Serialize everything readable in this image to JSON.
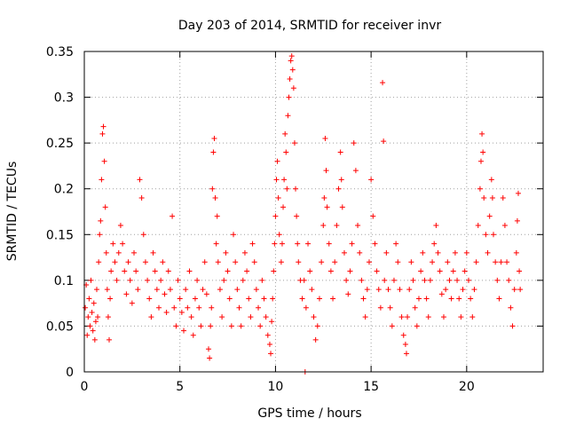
{
  "chart_data": {
    "type": "scatter",
    "title": "Day 203 of 2014, SRMTID for receiver invr",
    "xlabel": "GPS time / hours",
    "ylabel": "SRMTID / TECUs",
    "xlim": [
      0,
      24
    ],
    "ylim": [
      0,
      0.35
    ],
    "x_ticks": [
      0,
      5,
      10,
      15,
      20
    ],
    "y_ticks": [
      0,
      0.05,
      0.1,
      0.15,
      0.2,
      0.25,
      0.3,
      0.35
    ],
    "x_tick_labels": [
      "0",
      "5",
      "10",
      "15",
      "20"
    ],
    "y_tick_labels": [
      "0",
      "0.05",
      "0.1",
      "0.15",
      "0.2",
      "0.25",
      "0.3",
      "0.35"
    ],
    "grid": true,
    "marker": "plus",
    "color": "#ff0000",
    "series": [
      {
        "name": "SRMTID",
        "points": [
          [
            0.05,
            0.07
          ],
          [
            0.1,
            0.095
          ],
          [
            0.15,
            0.04
          ],
          [
            0.2,
            0.06
          ],
          [
            0.25,
            0.08
          ],
          [
            0.3,
            0.05
          ],
          [
            0.35,
            0.1
          ],
          [
            0.4,
            0.065
          ],
          [
            0.45,
            0.045
          ],
          [
            0.5,
            0.075
          ],
          [
            0.55,
            0.035
          ],
          [
            0.6,
            0.055
          ],
          [
            0.65,
            0.09
          ],
          [
            0.7,
            0.06
          ],
          [
            0.75,
            0.12
          ],
          [
            0.8,
            0.15
          ],
          [
            0.85,
            0.165
          ],
          [
            0.9,
            0.21
          ],
          [
            0.95,
            0.26
          ],
          [
            1.0,
            0.268
          ],
          [
            1.05,
            0.23
          ],
          [
            1.1,
            0.18
          ],
          [
            1.15,
            0.13
          ],
          [
            1.2,
            0.09
          ],
          [
            1.25,
            0.06
          ],
          [
            1.3,
            0.035
          ],
          [
            1.35,
            0.08
          ],
          [
            1.4,
            0.11
          ],
          [
            1.5,
            0.14
          ],
          [
            1.6,
            0.12
          ],
          [
            1.7,
            0.1
          ],
          [
            1.8,
            0.13
          ],
          [
            1.9,
            0.16
          ],
          [
            2.0,
            0.14
          ],
          [
            2.1,
            0.11
          ],
          [
            2.2,
            0.085
          ],
          [
            2.3,
            0.12
          ],
          [
            2.4,
            0.1
          ],
          [
            2.5,
            0.075
          ],
          [
            2.6,
            0.13
          ],
          [
            2.7,
            0.11
          ],
          [
            2.8,
            0.09
          ],
          [
            2.9,
            0.21
          ],
          [
            3.0,
            0.19
          ],
          [
            3.1,
            0.15
          ],
          [
            3.2,
            0.12
          ],
          [
            3.3,
            0.1
          ],
          [
            3.4,
            0.08
          ],
          [
            3.5,
            0.06
          ],
          [
            3.6,
            0.13
          ],
          [
            3.7,
            0.11
          ],
          [
            3.8,
            0.09
          ],
          [
            3.9,
            0.07
          ],
          [
            4.0,
            0.1
          ],
          [
            4.1,
            0.12
          ],
          [
            4.2,
            0.085
          ],
          [
            4.3,
            0.065
          ],
          [
            4.4,
            0.11
          ],
          [
            4.5,
            0.09
          ],
          [
            4.6,
            0.17
          ],
          [
            4.7,
            0.07
          ],
          [
            4.8,
            0.05
          ],
          [
            4.9,
            0.1
          ],
          [
            5.0,
            0.08
          ],
          [
            5.1,
            0.065
          ],
          [
            5.2,
            0.045
          ],
          [
            5.3,
            0.09
          ],
          [
            5.4,
            0.07
          ],
          [
            5.5,
            0.11
          ],
          [
            5.6,
            0.06
          ],
          [
            5.7,
            0.04
          ],
          [
            5.8,
            0.08
          ],
          [
            5.9,
            0.1
          ],
          [
            6.0,
            0.07
          ],
          [
            6.1,
            0.05
          ],
          [
            6.2,
            0.09
          ],
          [
            6.3,
            0.12
          ],
          [
            6.4,
            0.085
          ],
          [
            6.5,
            0.025
          ],
          [
            6.55,
            0.015
          ],
          [
            6.6,
            0.05
          ],
          [
            6.65,
            0.07
          ],
          [
            6.7,
            0.2
          ],
          [
            6.75,
            0.24
          ],
          [
            6.8,
            0.255
          ],
          [
            6.85,
            0.19
          ],
          [
            6.9,
            0.14
          ],
          [
            6.95,
            0.17
          ],
          [
            7.0,
            0.12
          ],
          [
            7.1,
            0.09
          ],
          [
            7.2,
            0.06
          ],
          [
            7.3,
            0.1
          ],
          [
            7.4,
            0.13
          ],
          [
            7.5,
            0.11
          ],
          [
            7.6,
            0.08
          ],
          [
            7.7,
            0.05
          ],
          [
            7.8,
            0.15
          ],
          [
            7.9,
            0.12
          ],
          [
            8.0,
            0.09
          ],
          [
            8.1,
            0.07
          ],
          [
            8.2,
            0.05
          ],
          [
            8.3,
            0.1
          ],
          [
            8.4,
            0.13
          ],
          [
            8.5,
            0.11
          ],
          [
            8.6,
            0.08
          ],
          [
            8.7,
            0.06
          ],
          [
            8.8,
            0.14
          ],
          [
            8.9,
            0.12
          ],
          [
            9.0,
            0.09
          ],
          [
            9.1,
            0.07
          ],
          [
            9.2,
            0.05
          ],
          [
            9.3,
            0.1
          ],
          [
            9.4,
            0.08
          ],
          [
            9.5,
            0.06
          ],
          [
            9.6,
            0.04
          ],
          [
            9.7,
            0.03
          ],
          [
            9.75,
            0.02
          ],
          [
            9.8,
            0.055
          ],
          [
            9.85,
            0.08
          ],
          [
            9.9,
            0.11
          ],
          [
            9.95,
            0.14
          ],
          [
            10.0,
            0.17
          ],
          [
            10.05,
            0.21
          ],
          [
            10.1,
            0.23
          ],
          [
            10.15,
            0.19
          ],
          [
            10.2,
            0.15
          ],
          [
            10.3,
            0.12
          ],
          [
            10.35,
            0.14
          ],
          [
            10.4,
            0.18
          ],
          [
            10.45,
            0.21
          ],
          [
            10.5,
            0.26
          ],
          [
            10.55,
            0.24
          ],
          [
            10.6,
            0.2
          ],
          [
            10.65,
            0.28
          ],
          [
            10.7,
            0.3
          ],
          [
            10.75,
            0.32
          ],
          [
            10.8,
            0.34
          ],
          [
            10.85,
            0.345
          ],
          [
            10.9,
            0.33
          ],
          [
            10.95,
            0.31
          ],
          [
            11.0,
            0.25
          ],
          [
            11.05,
            0.2
          ],
          [
            11.1,
            0.17
          ],
          [
            11.15,
            0.14
          ],
          [
            11.2,
            0.12
          ],
          [
            11.3,
            0.1
          ],
          [
            11.4,
            0.08
          ],
          [
            11.5,
            0.1
          ],
          [
            11.55,
            0.0
          ],
          [
            11.6,
            0.07
          ],
          [
            11.7,
            0.14
          ],
          [
            11.8,
            0.11
          ],
          [
            11.9,
            0.09
          ],
          [
            12.0,
            0.06
          ],
          [
            12.1,
            0.035
          ],
          [
            12.2,
            0.05
          ],
          [
            12.3,
            0.08
          ],
          [
            12.4,
            0.12
          ],
          [
            12.5,
            0.16
          ],
          [
            12.55,
            0.19
          ],
          [
            12.6,
            0.255
          ],
          [
            12.65,
            0.22
          ],
          [
            12.7,
            0.18
          ],
          [
            12.8,
            0.14
          ],
          [
            12.9,
            0.11
          ],
          [
            13.0,
            0.08
          ],
          [
            13.1,
            0.12
          ],
          [
            13.2,
            0.16
          ],
          [
            13.3,
            0.2
          ],
          [
            13.4,
            0.24
          ],
          [
            13.45,
            0.21
          ],
          [
            13.5,
            0.18
          ],
          [
            13.6,
            0.13
          ],
          [
            13.7,
            0.1
          ],
          [
            13.8,
            0.085
          ],
          [
            13.9,
            0.11
          ],
          [
            14.0,
            0.14
          ],
          [
            14.1,
            0.25
          ],
          [
            14.2,
            0.22
          ],
          [
            14.3,
            0.16
          ],
          [
            14.4,
            0.13
          ],
          [
            14.5,
            0.1
          ],
          [
            14.6,
            0.08
          ],
          [
            14.7,
            0.06
          ],
          [
            14.8,
            0.09
          ],
          [
            14.9,
            0.12
          ],
          [
            15.0,
            0.21
          ],
          [
            15.1,
            0.17
          ],
          [
            15.2,
            0.14
          ],
          [
            15.3,
            0.11
          ],
          [
            15.4,
            0.09
          ],
          [
            15.5,
            0.07
          ],
          [
            15.6,
            0.316
          ],
          [
            15.65,
            0.252
          ],
          [
            15.7,
            0.1
          ],
          [
            15.8,
            0.13
          ],
          [
            15.9,
            0.09
          ],
          [
            16.0,
            0.07
          ],
          [
            16.1,
            0.05
          ],
          [
            16.2,
            0.1
          ],
          [
            16.3,
            0.14
          ],
          [
            16.4,
            0.12
          ],
          [
            16.5,
            0.09
          ],
          [
            16.6,
            0.06
          ],
          [
            16.7,
            0.04
          ],
          [
            16.8,
            0.03
          ],
          [
            16.85,
            0.02
          ],
          [
            16.9,
            0.06
          ],
          [
            17.0,
            0.09
          ],
          [
            17.1,
            0.12
          ],
          [
            17.2,
            0.1
          ],
          [
            17.3,
            0.07
          ],
          [
            17.4,
            0.05
          ],
          [
            17.5,
            0.08
          ],
          [
            17.6,
            0.11
          ],
          [
            17.7,
            0.13
          ],
          [
            17.8,
            0.1
          ],
          [
            17.9,
            0.08
          ],
          [
            18.0,
            0.06
          ],
          [
            18.1,
            0.1
          ],
          [
            18.2,
            0.12
          ],
          [
            18.3,
            0.14
          ],
          [
            18.4,
            0.16
          ],
          [
            18.5,
            0.13
          ],
          [
            18.6,
            0.11
          ],
          [
            18.7,
            0.085
          ],
          [
            18.8,
            0.06
          ],
          [
            18.9,
            0.09
          ],
          [
            19.0,
            0.12
          ],
          [
            19.1,
            0.1
          ],
          [
            19.2,
            0.08
          ],
          [
            19.3,
            0.11
          ],
          [
            19.4,
            0.13
          ],
          [
            19.5,
            0.1
          ],
          [
            19.6,
            0.08
          ],
          [
            19.7,
            0.06
          ],
          [
            19.8,
            0.09
          ],
          [
            19.9,
            0.11
          ],
          [
            20.0,
            0.13
          ],
          [
            20.1,
            0.1
          ],
          [
            20.2,
            0.08
          ],
          [
            20.3,
            0.06
          ],
          [
            20.4,
            0.09
          ],
          [
            20.5,
            0.12
          ],
          [
            20.6,
            0.16
          ],
          [
            20.7,
            0.2
          ],
          [
            20.75,
            0.23
          ],
          [
            20.8,
            0.26
          ],
          [
            20.85,
            0.24
          ],
          [
            20.9,
            0.19
          ],
          [
            21.0,
            0.15
          ],
          [
            21.1,
            0.13
          ],
          [
            21.2,
            0.17
          ],
          [
            21.3,
            0.21
          ],
          [
            21.35,
            0.19
          ],
          [
            21.4,
            0.15
          ],
          [
            21.5,
            0.12
          ],
          [
            21.6,
            0.1
          ],
          [
            21.7,
            0.08
          ],
          [
            21.8,
            0.12
          ],
          [
            21.9,
            0.19
          ],
          [
            22.0,
            0.16
          ],
          [
            22.1,
            0.12
          ],
          [
            22.2,
            0.1
          ],
          [
            22.3,
            0.07
          ],
          [
            22.4,
            0.05
          ],
          [
            22.5,
            0.09
          ],
          [
            22.6,
            0.13
          ],
          [
            22.65,
            0.165
          ],
          [
            22.7,
            0.195
          ],
          [
            22.75,
            0.11
          ],
          [
            22.8,
            0.09
          ]
        ]
      }
    ]
  }
}
